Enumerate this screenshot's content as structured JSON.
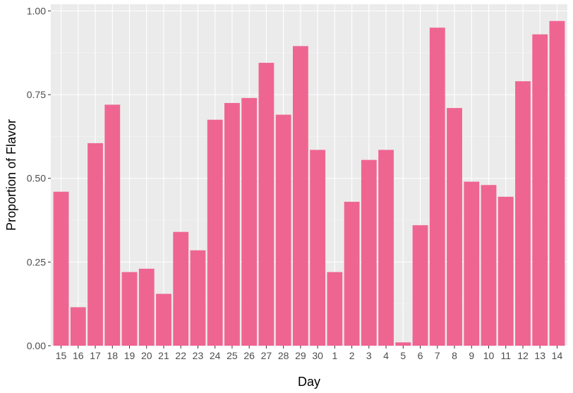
{
  "chart_data": {
    "type": "bar",
    "title": "",
    "xlabel": "Day",
    "ylabel": "Proportion of Flavor",
    "categories": [
      "15",
      "16",
      "17",
      "18",
      "19",
      "20",
      "21",
      "22",
      "23",
      "24",
      "25",
      "26",
      "27",
      "28",
      "29",
      "30",
      "1",
      "2",
      "3",
      "4",
      "5",
      "6",
      "7",
      "8",
      "9",
      "10",
      "11",
      "12",
      "13",
      "14"
    ],
    "values": [
      0.46,
      0.115,
      0.605,
      0.72,
      0.22,
      0.23,
      0.155,
      0.34,
      0.285,
      0.675,
      0.725,
      0.74,
      0.845,
      0.69,
      0.895,
      0.585,
      0.22,
      0.43,
      0.555,
      0.585,
      0.01,
      0.36,
      0.95,
      0.71,
      0.49,
      0.48,
      0.445,
      0.79,
      0.93,
      0.97
    ],
    "yticks": [
      "0.00",
      "0.25",
      "0.50",
      "0.75",
      "1.00"
    ],
    "ylim": [
      0,
      1.02
    ],
    "grid": true,
    "legend": "none",
    "colors": {
      "bar": "#EF6592",
      "panel": "#EBEBEB",
      "grid_major": "#FFFFFF",
      "grid_minor": "#F4F4F4",
      "tick_text": "#4D4D4D",
      "axis_title": "#000000"
    }
  }
}
